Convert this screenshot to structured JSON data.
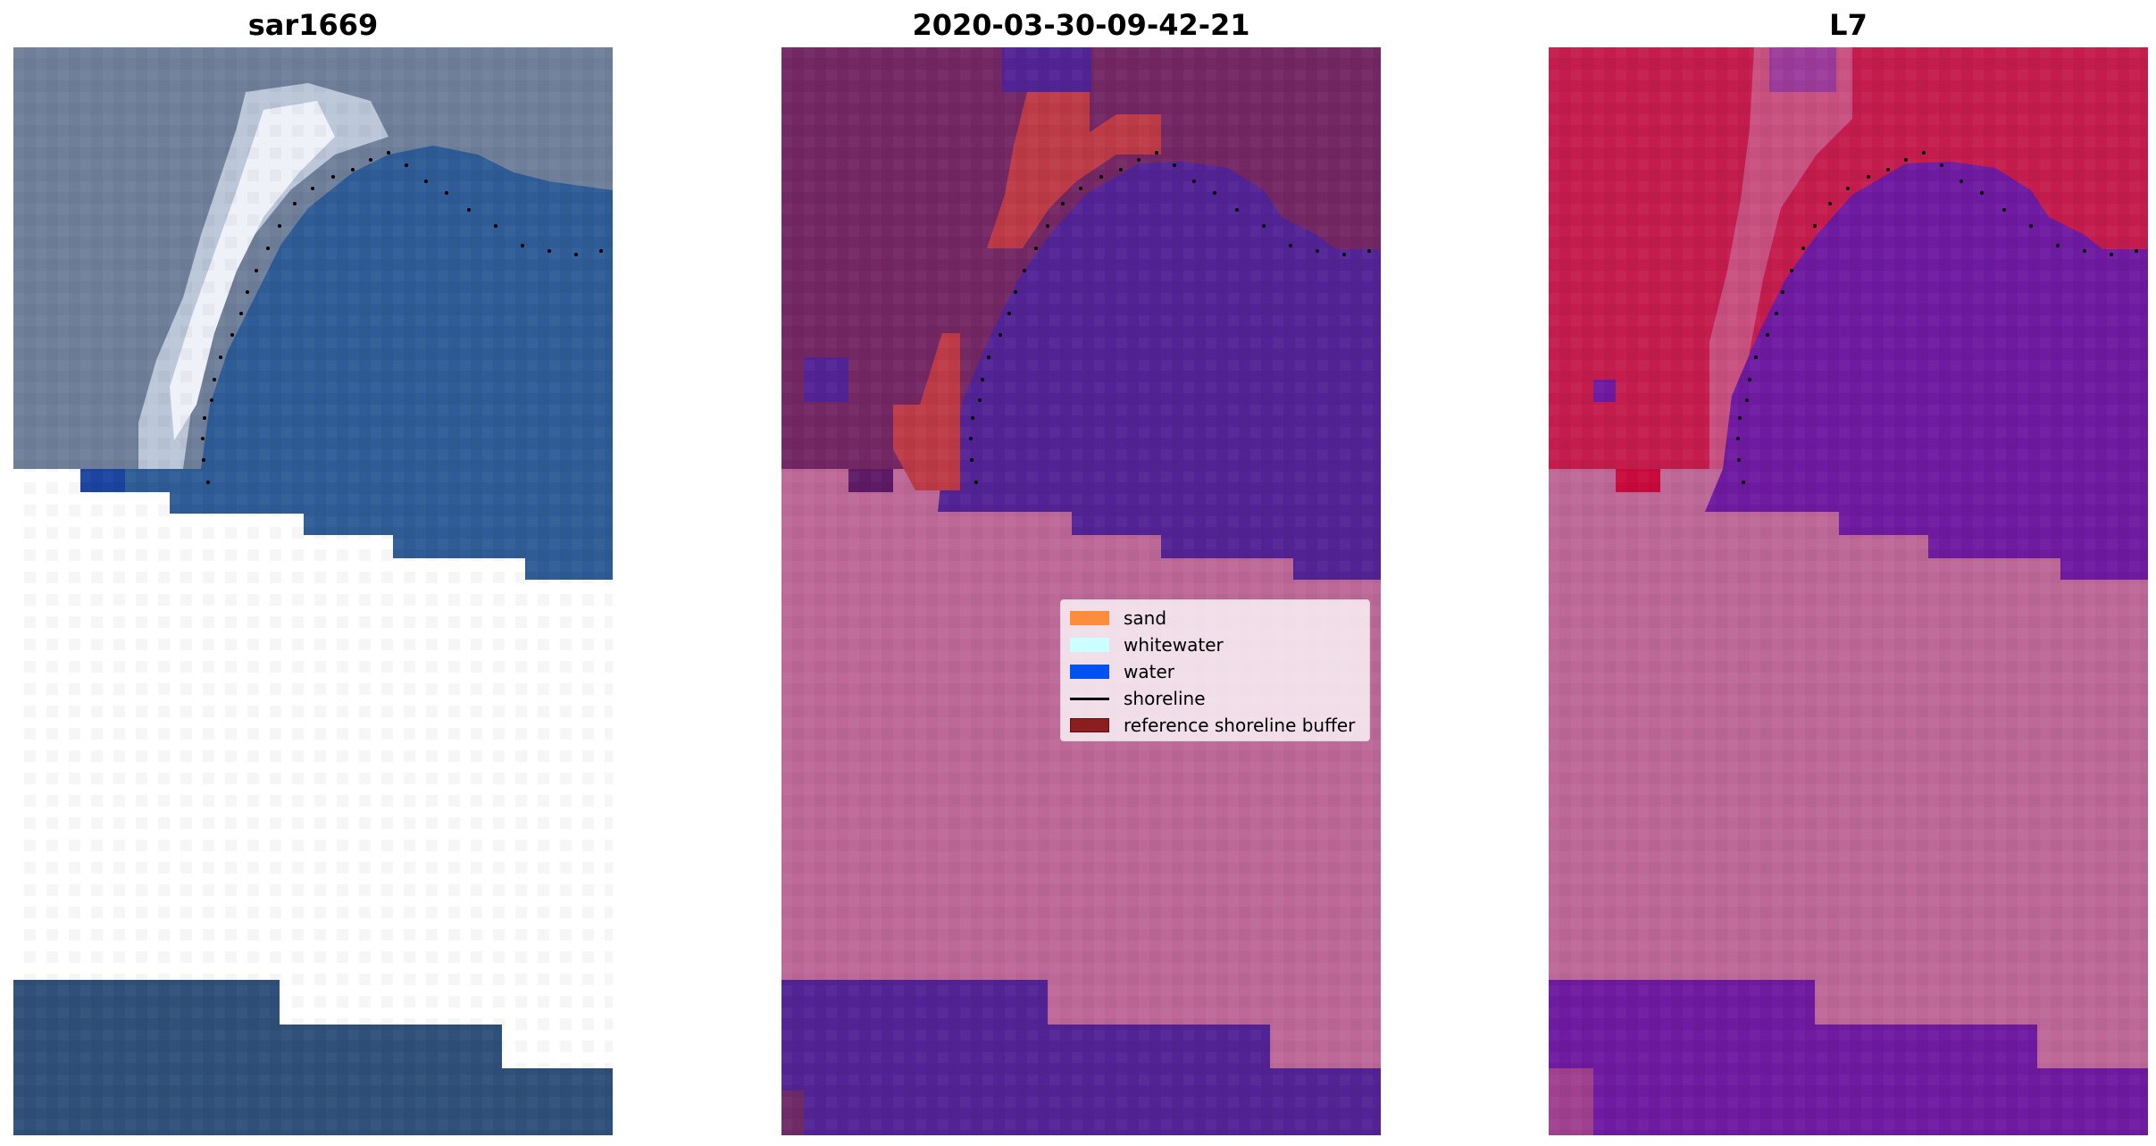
{
  "panels": [
    {
      "title": "sar1669"
    },
    {
      "title": "2020-03-30-09-42-21"
    },
    {
      "title": "L7"
    }
  ],
  "legend": {
    "items": [
      {
        "label": "sand",
        "color": "#ff8c3a"
      },
      {
        "label": "whitewater",
        "color": "#ccffff"
      },
      {
        "label": "water",
        "color": "#0052f0"
      },
      {
        "label": "shoreline",
        "color": "#000000"
      },
      {
        "label": "reference shoreline buffer",
        "color": "#8b1f1f"
      }
    ]
  },
  "colors": {
    "rgb_water": "#2f5c96",
    "rgb_land": "#6f7f99",
    "rgb_whitewater": "#e8ecf4",
    "class_land": "#732763",
    "class_water": "#522394",
    "class_buffer": "#bd3a47",
    "class_nodata": "#bd6896",
    "index_land": "#c41c4d",
    "index_water": "#6e1aa1",
    "index_nodata": "#bd6896",
    "shoreline": "#000000"
  }
}
